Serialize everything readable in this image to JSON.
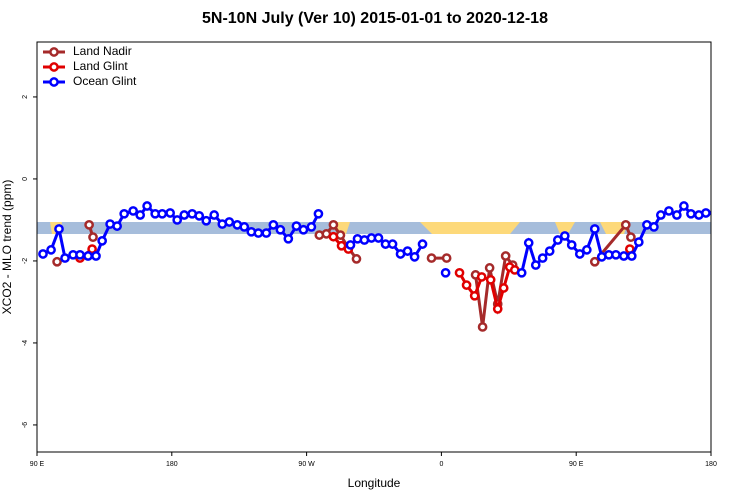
{
  "chart_data": {
    "type": "line",
    "title": "5N-10N July (Ver 10)   2015-01-01 to 2020-12-18",
    "x_label": "Longitude",
    "y_label": "XCO2 - MLO trend (ppm)",
    "xlim": [
      90,
      540
    ],
    "ylim": [
      -6.66,
      3.34
    ],
    "xticks": [
      {
        "value": 90,
        "label": "90 E"
      },
      180,
      {
        "value": 270,
        "label": "90 W"
      },
      {
        "value": 360,
        "label": "0"
      },
      {
        "value": 450,
        "label": "90 E"
      },
      {
        "value": 540,
        "label": "180"
      }
    ],
    "yticks": [
      -6,
      -4,
      -2,
      0,
      2
    ],
    "legend": "top-left",
    "series": [
      {
        "name": "Land Nadir",
        "color": "#a52a2a",
        "x": [
          103.4,
          null,
          124.8,
          127.4,
          null,
          278.5,
          283.2,
          287.9,
          292.6,
          297.9,
          303.3,
          null,
          353.4,
          363.5,
          null,
          382.8,
          387.5,
          392.2,
          397.6,
          402.9,
          407.6,
          null,
          462.4,
          483.1,
          486.5
        ],
        "values": [
          -2.02,
          null,
          -1.12,
          -1.42,
          null,
          -1.37,
          -1.34,
          -1.12,
          -1.37,
          -1.68,
          -1.95,
          null,
          -1.93,
          -1.93,
          null,
          -2.34,
          -3.61,
          -2.17,
          -3.05,
          -1.88,
          -2.1,
          null,
          -2.02,
          -1.12,
          -1.42
        ]
      },
      {
        "name": "Land Glint",
        "color": "#e00000",
        "x": [
          118.7,
          126.8,
          null,
          287.9,
          293.3,
          297.9,
          null,
          372.1,
          376.8,
          382.2,
          386.9,
          392.9,
          397.6,
          401.6,
          405.6,
          409.0,
          null,
          485.8
        ],
        "values": [
          -1.93,
          -1.71,
          null,
          -1.41,
          -1.63,
          -1.71,
          null,
          -2.29,
          -2.59,
          -2.85,
          -2.39,
          -2.46,
          -3.17,
          -2.66,
          -2.15,
          -2.22,
          null,
          -1.71
        ]
      },
      {
        "name": "Ocean Glint",
        "color": "#0000ff",
        "x": [
          94.0,
          99.4,
          104.7,
          108.7,
          114.1,
          118.7,
          124.1,
          129.4,
          133.5,
          138.8,
          143.5,
          148.2,
          154.2,
          158.9,
          163.5,
          168.9,
          173.6,
          178.9,
          183.6,
          188.3,
          193.6,
          198.3,
          203.0,
          208.3,
          213.7,
          218.4,
          223.7,
          228.4,
          233.1,
          237.8,
          243.1,
          247.8,
          252.5,
          257.8,
          263.2,
          267.9,
          273.2,
          277.9,
          null,
          299.3,
          304.0,
          308.6,
          313.3,
          318.0,
          322.7,
          327.4,
          332.7,
          337.4,
          342.1,
          347.4,
          null,
          362.8,
          null,
          413.6,
          418.3,
          423.0,
          427.6,
          432.3,
          437.7,
          442.4,
          447.0,
          452.4,
          457.1,
          462.4,
          467.1,
          471.8,
          476.5,
          481.8,
          487.1,
          491.8,
          497.2,
          501.9,
          506.5,
          511.9,
          517.2,
          521.9,
          526.6,
          531.9,
          536.6
        ],
        "values": [
          -1.83,
          -1.73,
          -1.22,
          -1.93,
          -1.85,
          -1.85,
          -1.88,
          -1.88,
          -1.51,
          -1.1,
          -1.15,
          -0.85,
          -0.78,
          -0.88,
          -0.66,
          -0.85,
          -0.85,
          -0.83,
          -1.0,
          -0.88,
          -0.85,
          -0.9,
          -1.02,
          -0.88,
          -1.1,
          -1.05,
          -1.12,
          -1.17,
          -1.29,
          -1.32,
          -1.32,
          -1.12,
          -1.24,
          -1.46,
          -1.15,
          -1.24,
          -1.17,
          -0.85,
          null,
          -1.61,
          -1.46,
          -1.49,
          -1.44,
          -1.44,
          -1.59,
          -1.59,
          -1.83,
          -1.76,
          -1.9,
          -1.59,
          null,
          -2.29,
          null,
          -2.29,
          -1.56,
          -2.1,
          -1.93,
          -1.76,
          -1.49,
          -1.39,
          -1.61,
          -1.83,
          -1.73,
          -1.22,
          -1.9,
          -1.85,
          -1.85,
          -1.88,
          -1.88,
          -1.54,
          -1.12,
          -1.17,
          -0.88,
          -0.78,
          -0.88,
          -0.66,
          -0.85,
          -0.88,
          -0.83
        ]
      }
    ]
  }
}
